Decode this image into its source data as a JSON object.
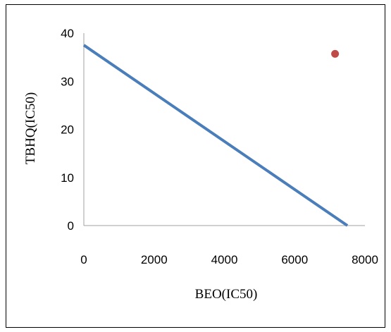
{
  "chart_data": {
    "type": "scatter",
    "title": "",
    "xlabel": "BEO(IC50)",
    "ylabel": "TBHQ(IC50)",
    "xlim": [
      0,
      8000
    ],
    "ylim": [
      0,
      40
    ],
    "x_ticks": [
      "0",
      "2000",
      "4000",
      "6000",
      "8000"
    ],
    "y_ticks": [
      "0",
      "10",
      "20",
      "30",
      "40"
    ],
    "grid": false,
    "legend": "none",
    "series": [
      {
        "type": "line",
        "color": "#4a7ebb",
        "x": [
          0,
          7500
        ],
        "y": [
          37.5,
          0
        ]
      },
      {
        "type": "scatter",
        "color": "#be4b48",
        "x": [
          7150
        ],
        "y": [
          35.7
        ]
      }
    ]
  }
}
